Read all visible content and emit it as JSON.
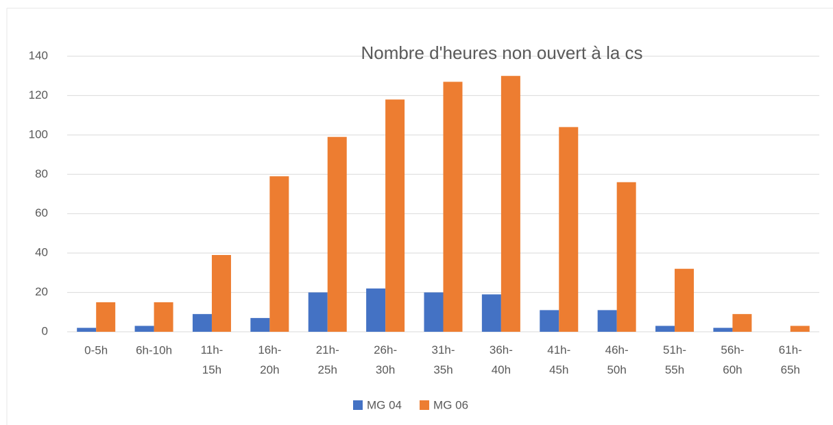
{
  "chart_data": {
    "type": "bar",
    "title": "Nombre d'heures non ouvert à la cs",
    "categories": [
      "0-5h",
      "6h-10h",
      "11h-15h",
      "16h-20h",
      "21h-25h",
      "26h-30h",
      "31h-35h",
      "36h-40h",
      "41h-45h",
      "46h-50h",
      "51h-55h",
      "56h-60h",
      "61h-65h"
    ],
    "series": [
      {
        "name": "MG 04",
        "color": "#4472c4",
        "values": [
          2,
          3,
          9,
          7,
          20,
          22,
          20,
          19,
          11,
          11,
          3,
          2,
          0
        ]
      },
      {
        "name": "MG 06",
        "color": "#ed7d31",
        "values": [
          15,
          15,
          39,
          79,
          99,
          118,
          127,
          130,
          104,
          76,
          32,
          9,
          3
        ]
      }
    ],
    "ylim": [
      0,
      140
    ],
    "yticks": [
      0,
      20,
      40,
      60,
      80,
      100,
      120,
      140
    ],
    "grid": true,
    "legend": "bottom"
  }
}
